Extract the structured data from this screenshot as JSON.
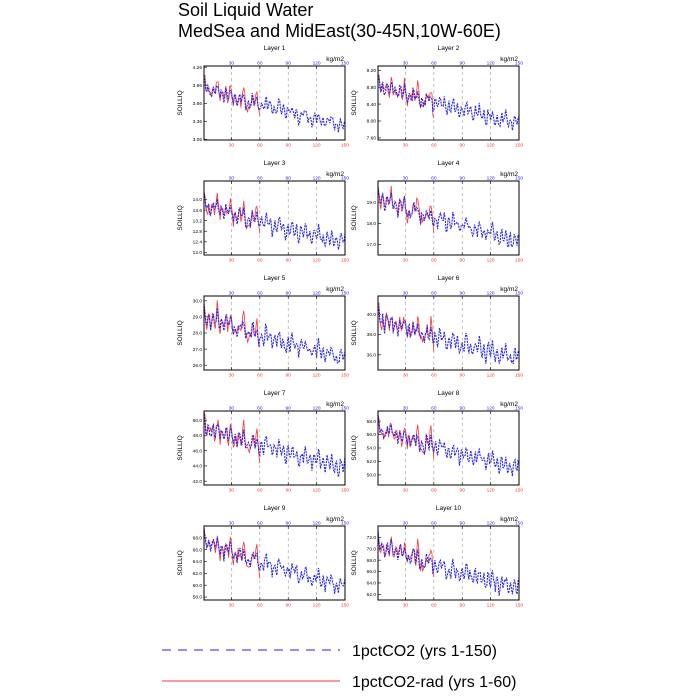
{
  "title": {
    "line1": "Soil Liquid Water",
    "line2": "MedSea and MidEast(30-45N,10W-60E)"
  },
  "units_label": "kg/m2",
  "ylabel": "SOILLIQ",
  "colors": {
    "ctrl": "#2222ee",
    "rad": "#ff3333",
    "grid": "#999999"
  },
  "legend": [
    {
      "label": "1pctCO2 (yrs 1-150)",
      "style": "dashed",
      "color": "#2222ee"
    },
    {
      "label": "1pctCO2-rad (yrs 1-60)",
      "style": "solid",
      "color": "#ff3333"
    }
  ],
  "chart_data": [
    {
      "type": "line",
      "title": "Layer 1",
      "ylabel": "SOILLIQ",
      "xlim": [
        1,
        150
      ],
      "ylim": [
        3.05,
        4.28
      ],
      "yticks": [
        3.06,
        3.36,
        3.66,
        3.96,
        4.26
      ],
      "ytick_labels": [
        "3.06",
        "3.36",
        "3.66",
        "3.96",
        "4.26"
      ],
      "xticks": [
        30,
        60,
        90,
        120,
        150
      ],
      "ctrl_start": 3.93,
      "ctrl_end": 3.3,
      "rad_end_years": 60,
      "osc_amp": 0.09
    },
    {
      "type": "line",
      "title": "Layer 2",
      "ylabel": "SOILLIQ",
      "xlim": [
        1,
        150
      ],
      "ylim": [
        7.55,
        9.3
      ],
      "yticks": [
        7.6,
        8.0,
        8.4,
        8.8,
        9.2
      ],
      "ytick_labels": [
        "7.60",
        "8.00",
        "8.40",
        "8.80",
        "9.20"
      ],
      "xticks": [
        30,
        60,
        90,
        120,
        150
      ],
      "ctrl_start": 8.85,
      "ctrl_end": 7.95,
      "rad_end_years": 60,
      "osc_amp": 0.14
    },
    {
      "type": "line",
      "title": "Layer 3",
      "ylabel": "SOILLIQ",
      "xlim": [
        1,
        150
      ],
      "ylim": [
        11.9,
        14.7
      ],
      "yticks": [
        12.0,
        12.4,
        12.8,
        13.2,
        13.6,
        14.0
      ],
      "ytick_labels": [
        "12.0",
        "12.4",
        "12.8",
        "13.2",
        "13.6",
        "14.0"
      ],
      "xticks": [
        30,
        60,
        90,
        120,
        150
      ],
      "ctrl_start": 13.85,
      "ctrl_end": 12.35,
      "rad_end_years": 60,
      "osc_amp": 0.24
    },
    {
      "type": "line",
      "title": "Layer 4",
      "ylabel": "SOILLIQ",
      "xlim": [
        1,
        150
      ],
      "ylim": [
        16.5,
        20.0
      ],
      "yticks": [
        17.0,
        18.0,
        19.0
      ],
      "ytick_labels": [
        "17.0",
        "18.0",
        "19.0"
      ],
      "xticks": [
        30,
        60,
        90,
        120,
        150
      ],
      "ctrl_start": 19.2,
      "ctrl_end": 17.15,
      "rad_end_years": 60,
      "osc_amp": 0.3
    },
    {
      "type": "line",
      "title": "Layer 5",
      "ylabel": "SOILLIQ",
      "xlim": [
        1,
        150
      ],
      "ylim": [
        25.7,
        30.3
      ],
      "yticks": [
        26.0,
        27.0,
        28.0,
        29.0,
        30.0
      ],
      "ytick_labels": [
        "26.0",
        "27.0",
        "28.0",
        "29.0",
        "30.0"
      ],
      "xticks": [
        30,
        60,
        90,
        120,
        150
      ],
      "ctrl_start": 29.1,
      "ctrl_end": 26.45,
      "rad_end_years": 60,
      "osc_amp": 0.42
    },
    {
      "type": "line",
      "title": "Layer 6",
      "ylabel": "SOILLIQ",
      "xlim": [
        1,
        150
      ],
      "ylim": [
        34.5,
        41.8
      ],
      "yticks": [
        36.0,
        38.0,
        40.0
      ],
      "ytick_labels": [
        "36.0",
        "38.0",
        "40.0"
      ],
      "xticks": [
        30,
        60,
        90,
        120,
        150
      ],
      "ctrl_start": 39.6,
      "ctrl_end": 35.6,
      "rad_end_years": 60,
      "osc_amp": 0.65
    },
    {
      "type": "line",
      "title": "Layer 7",
      "ylabel": "SOILLIQ",
      "xlim": [
        1,
        150
      ],
      "ylim": [
        41.5,
        51.2
      ],
      "yticks": [
        42.0,
        44.0,
        46.0,
        48.0,
        50.0
      ],
      "ytick_labels": [
        "42.0",
        "44.0",
        "46.0",
        "48.0",
        "50.0"
      ],
      "xticks": [
        30,
        60,
        90,
        120,
        150
      ],
      "ctrl_start": 49.2,
      "ctrl_end": 43.8,
      "rad_end_years": 60,
      "osc_amp": 0.85
    },
    {
      "type": "line",
      "title": "Layer 8",
      "ylabel": "SOILLIQ",
      "xlim": [
        1,
        150
      ],
      "ylim": [
        48.5,
        59.5
      ],
      "yticks": [
        50.0,
        52.0,
        54.0,
        56.0,
        58.0
      ],
      "ytick_labels": [
        "50.0",
        "52.0",
        "54.0",
        "56.0",
        "58.0"
      ],
      "xticks": [
        30,
        60,
        90,
        120,
        150
      ],
      "ctrl_start": 57.0,
      "ctrl_end": 51.0,
      "rad_end_years": 60,
      "osc_amp": 0.95
    },
    {
      "type": "line",
      "title": "Layer 9",
      "ylabel": "SOILLIQ",
      "xlim": [
        1,
        150
      ],
      "ylim": [
        57.5,
        70.0
      ],
      "yticks": [
        58.0,
        60.0,
        62.0,
        64.0,
        66.0,
        68.0
      ],
      "ytick_labels": [
        "58.0",
        "60.0",
        "62.0",
        "64.0",
        "66.0",
        "68.0"
      ],
      "xticks": [
        30,
        60,
        90,
        120,
        150
      ],
      "ctrl_start": 67.5,
      "ctrl_end": 59.8,
      "rad_end_years": 60,
      "osc_amp": 1.1
    },
    {
      "type": "line",
      "title": "Layer 10",
      "ylabel": "SOILLIQ",
      "xlim": [
        1,
        150
      ],
      "ylim": [
        61.0,
        74.0
      ],
      "yticks": [
        62.0,
        64.0,
        66.0,
        68.0,
        70.0,
        72.0
      ],
      "ytick_labels": [
        "62.0",
        "64.0",
        "66.0",
        "68.0",
        "70.0",
        "72.0"
      ],
      "xticks": [
        30,
        60,
        90,
        120,
        150
      ],
      "ctrl_start": 70.8,
      "ctrl_end": 63.0,
      "rad_end_years": 60,
      "osc_amp": 1.2
    }
  ]
}
